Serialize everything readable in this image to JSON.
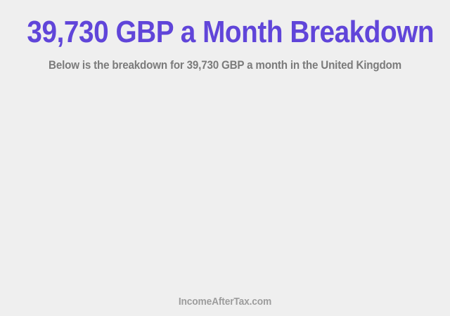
{
  "page": {
    "title": "39,730 GBP a Month Breakdown",
    "subtitle": "Below is the breakdown for 39,730 GBP a month in the United Kingdom",
    "footer_link": "IncomeAfterTax.com",
    "colors": {
      "background": "#efefef",
      "title": "#6045d9",
      "subtitle": "#7b7b7b",
      "footer": "#9d9d9d"
    }
  }
}
